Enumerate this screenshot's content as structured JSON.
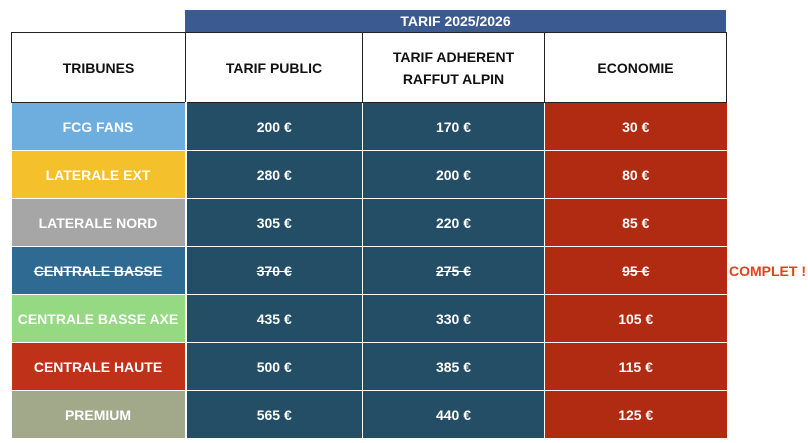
{
  "title": "TARIF 2025/2026",
  "headers": {
    "tribunes": "TRIBUNES",
    "tarif_public": "TARIF PUBLIC",
    "tarif_adherent_line1": "TARIF ADHERENT",
    "tarif_adherent_line2": "RAFFUT ALPIN",
    "economie": "ECONOMIE"
  },
  "rows": [
    {
      "tribune": "FCG FANS",
      "public": "200 €",
      "adherent": "170 €",
      "economie": "30 €",
      "color": "#6eaedf",
      "struck": false
    },
    {
      "tribune": "LATERALE EXT",
      "public": "280 €",
      "adherent": "200 €",
      "economie": "80 €",
      "color": "#f4c02b",
      "struck": false
    },
    {
      "tribune": "LATERALE NORD",
      "public": "305 €",
      "adherent": "220 €",
      "economie": "85 €",
      "color": "#a6a6a6",
      "struck": false
    },
    {
      "tribune": "CENTRALE BASSE",
      "public": "370 €",
      "adherent": "275 €",
      "economie": "95 €",
      "color": "#2f6a92",
      "struck": true
    },
    {
      "tribune": "CENTRALE BASSE AXE",
      "public": "435 €",
      "adherent": "330 €",
      "economie": "105 €",
      "color": "#95d983",
      "struck": false
    },
    {
      "tribune": "CENTRALE HAUTE",
      "public": "500 €",
      "adherent": "385 €",
      "economie": "115 €",
      "color": "#c0311a",
      "struck": false
    },
    {
      "tribune": "PREMIUM",
      "public": "565 €",
      "adherent": "440 €",
      "economie": "125 €",
      "color": "#a1a98a",
      "struck": false
    }
  ],
  "status_note": "COMPLET !"
}
